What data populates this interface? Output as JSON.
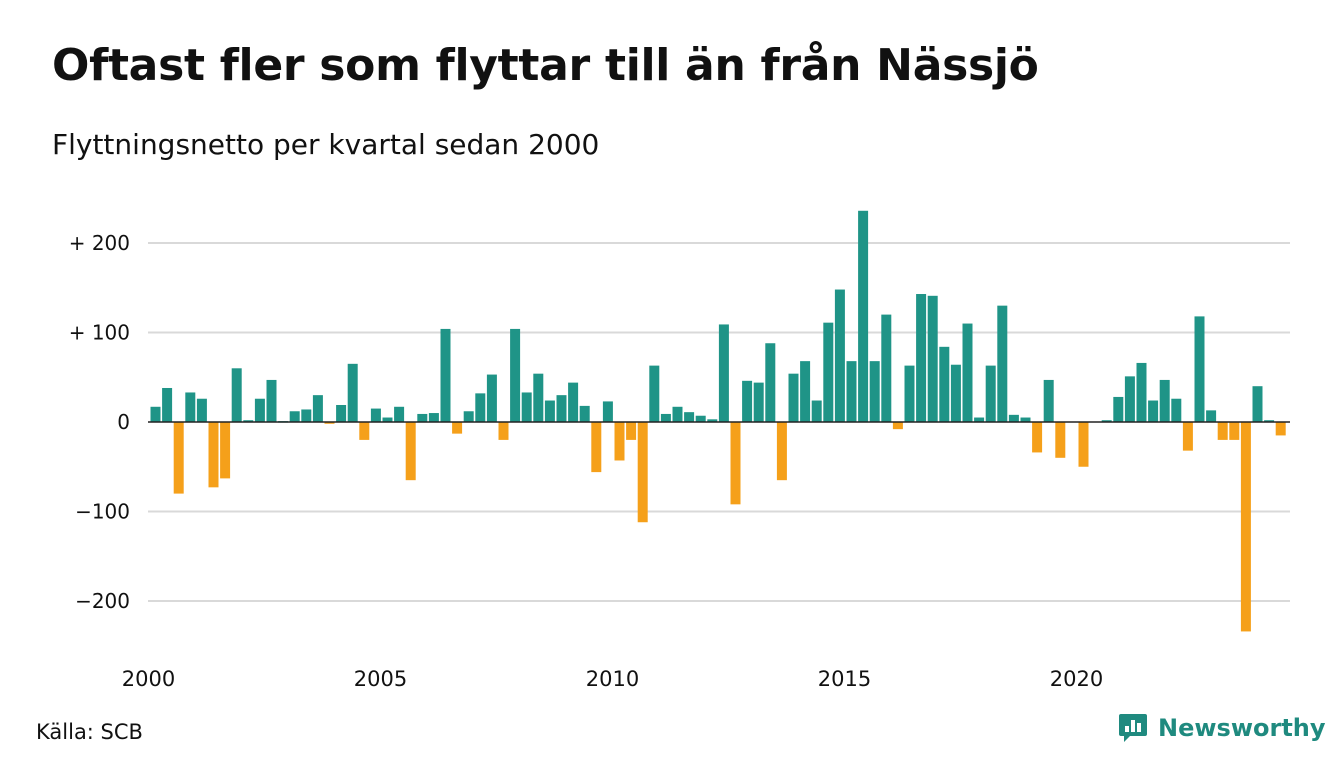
{
  "header": {
    "title": "Oftast fler som flyttar till än från Nässjö",
    "subtitle": "Flyttningsnetto per kvartal sedan 2000"
  },
  "footer": {
    "source": "Källa: SCB",
    "brand": "Newsworthy",
    "brand_icon": "bar-chart-speech-bubble-icon"
  },
  "colors": {
    "positive": "#1f9487",
    "negative": "#f5a01a",
    "grid": "#d9d9d9",
    "zero_line": "#222222",
    "brand": "#1f8a7f"
  },
  "chart_data": {
    "type": "bar",
    "x_start": "2000 Q1",
    "x_ticks": [
      "2000",
      "2005",
      "2010",
      "2015",
      "2020"
    ],
    "y_ticks": [
      "+ 200",
      "+ 100",
      "0",
      "−100",
      "−200"
    ],
    "y_tick_values": [
      200,
      100,
      0,
      -100,
      -200
    ],
    "ylim": [
      -255,
      237
    ],
    "grid": true,
    "values": [
      17,
      38,
      -80,
      33,
      26,
      -73,
      -63,
      60,
      2,
      26,
      47,
      1,
      12,
      14,
      30,
      -2,
      19,
      65,
      -20,
      15,
      5,
      17,
      -65,
      9,
      10,
      104,
      -13,
      12,
      32,
      53,
      -20,
      104,
      33,
      54,
      24,
      30,
      44,
      18,
      -56,
      23,
      -43,
      -20,
      -112,
      63,
      9,
      17,
      11,
      7,
      3,
      109,
      -92,
      46,
      44,
      88,
      -65,
      54,
      68,
      24,
      111,
      148,
      68,
      236,
      68,
      120,
      -8,
      63,
      143,
      141,
      84,
      64,
      110,
      5,
      63,
      130,
      8,
      5,
      -34,
      47,
      -40,
      0,
      -50,
      0,
      2,
      28,
      51,
      66,
      24,
      47,
      26,
      -32,
      118,
      13,
      -20,
      -20,
      -234,
      40,
      2,
      -15
    ]
  }
}
